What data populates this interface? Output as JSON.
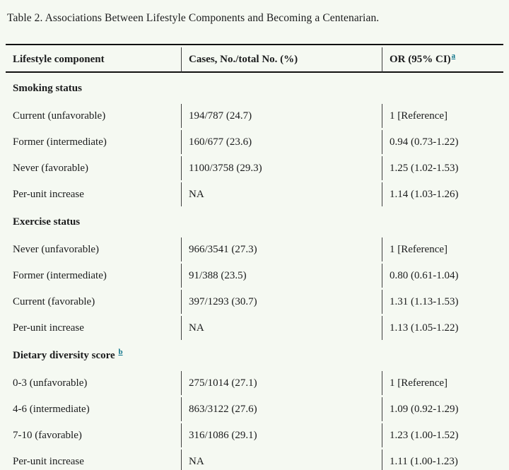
{
  "title": "Table 2. Associations Between Lifestyle Components and Becoming a Centenarian.",
  "colors": {
    "background": "#f5f9f2",
    "text": "#1b1c1d",
    "footnote_link": "#0b7289",
    "rule": "#111111"
  },
  "table": {
    "columns": {
      "component": "Lifestyle component",
      "cases": "Cases, No./total No. (%)",
      "or": "OR (95% CI)",
      "or_footnote": "a"
    },
    "sections": [
      {
        "label": "Smoking status",
        "rows": [
          {
            "component": "Current (unfavorable)",
            "cases": "194/787 (24.7)",
            "or": "1 [Reference]"
          },
          {
            "component": "Former (intermediate)",
            "cases": "160/677 (23.6)",
            "or": "0.94 (0.73-1.22)"
          },
          {
            "component": "Never (favorable)",
            "cases": "1100/3758 (29.3)",
            "or": "1.25 (1.02-1.53)"
          },
          {
            "component": "Per-unit increase",
            "cases": "NA",
            "or": "1.14 (1.03-1.26)"
          }
        ]
      },
      {
        "label": "Exercise status",
        "rows": [
          {
            "component": "Never (unfavorable)",
            "cases": "966/3541 (27.3)",
            "or": "1 [Reference]"
          },
          {
            "component": "Former (intermediate)",
            "cases": "91/388 (23.5)",
            "or": "0.80 (0.61-1.04)"
          },
          {
            "component": "Current (favorable)",
            "cases": "397/1293 (30.7)",
            "or": "1.31 (1.13-1.53)"
          },
          {
            "component": "Per-unit increase",
            "cases": "NA",
            "or": "1.13 (1.05-1.22)"
          }
        ]
      },
      {
        "label": "Dietary diversity score",
        "footnote": "b",
        "rows": [
          {
            "component": "0-3 (unfavorable)",
            "cases": "275/1014 (27.1)",
            "or": "1 [Reference]"
          },
          {
            "component": "4-6 (intermediate)",
            "cases": "863/3122 (27.6)",
            "or": "1.09 (0.92-1.29)"
          },
          {
            "component": "7-10 (favorable)",
            "cases": "316/1086 (29.1)",
            "or": "1.23 (1.00-1.52)"
          },
          {
            "component": "Per-unit increase",
            "cases": "NA",
            "or": "1.11 (1.00-1.23)"
          }
        ]
      }
    ]
  }
}
